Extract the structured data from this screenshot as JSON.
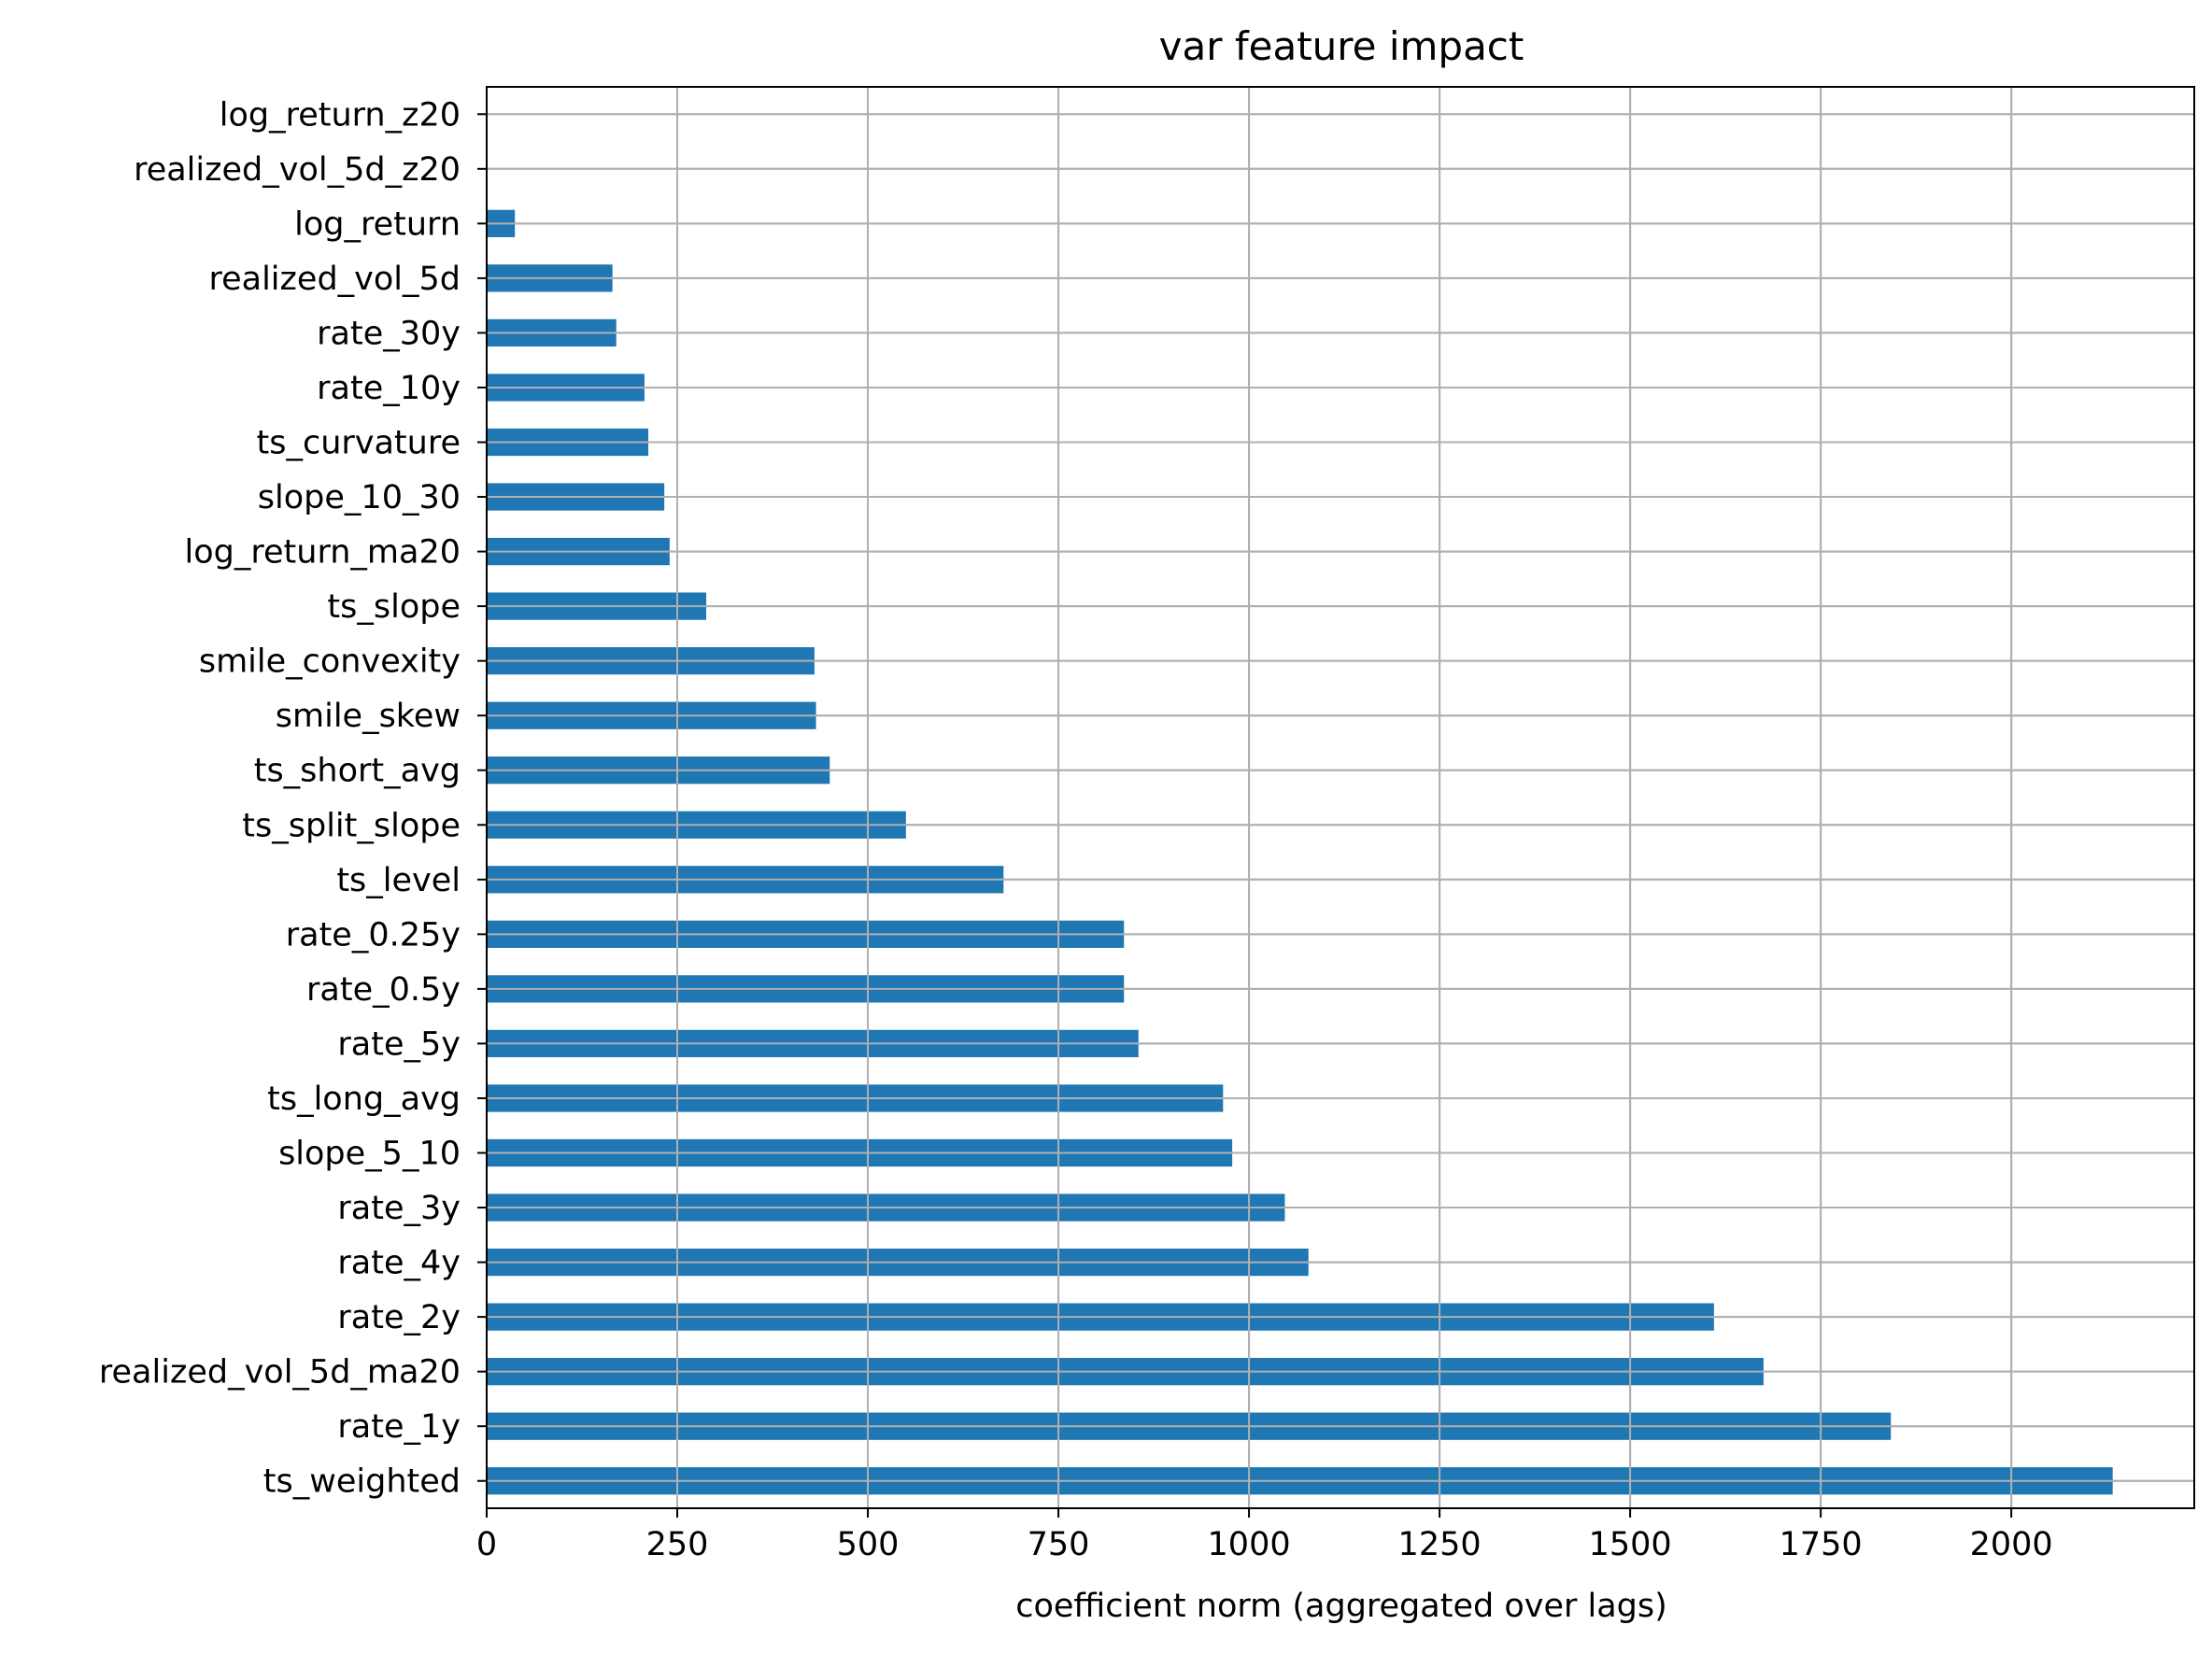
{
  "chart_data": {
    "type": "bar",
    "orientation": "horizontal",
    "title": "var feature impact",
    "xlabel": "coefficient norm (aggregated over lags)",
    "ylabel": "",
    "xlim": [
      0,
      2240
    ],
    "xticks": [
      0,
      250,
      500,
      750,
      1000,
      1250,
      1500,
      1750,
      2000
    ],
    "xtick_labels": [
      "0",
      "250",
      "500",
      "750",
      "1000",
      "1250",
      "1500",
      "1750",
      "2000"
    ],
    "grid": true,
    "bar_color": "#1f77b4",
    "grid_color": "#b0b0b0",
    "categories": [
      "log_return_z20",
      "realized_vol_5d_z20",
      "log_return",
      "realized_vol_5d",
      "rate_30y",
      "rate_10y",
      "ts_curvature",
      "slope_10_30",
      "log_return_ma20",
      "ts_slope",
      "smile_convexity",
      "smile_skew",
      "ts_short_avg",
      "ts_split_slope",
      "ts_level",
      "rate_0.25y",
      "rate_0.5y",
      "rate_5y",
      "ts_long_avg",
      "slope_5_10",
      "rate_3y",
      "rate_4y",
      "rate_2y",
      "realized_vol_5d_ma20",
      "rate_1y",
      "ts_weighted"
    ],
    "values": [
      0,
      0,
      37,
      165,
      170,
      207,
      212,
      233,
      240,
      288,
      430,
      432,
      450,
      550,
      678,
      836,
      836,
      855,
      966,
      978,
      1047,
      1078,
      1610,
      1675,
      1842,
      2133
    ]
  }
}
